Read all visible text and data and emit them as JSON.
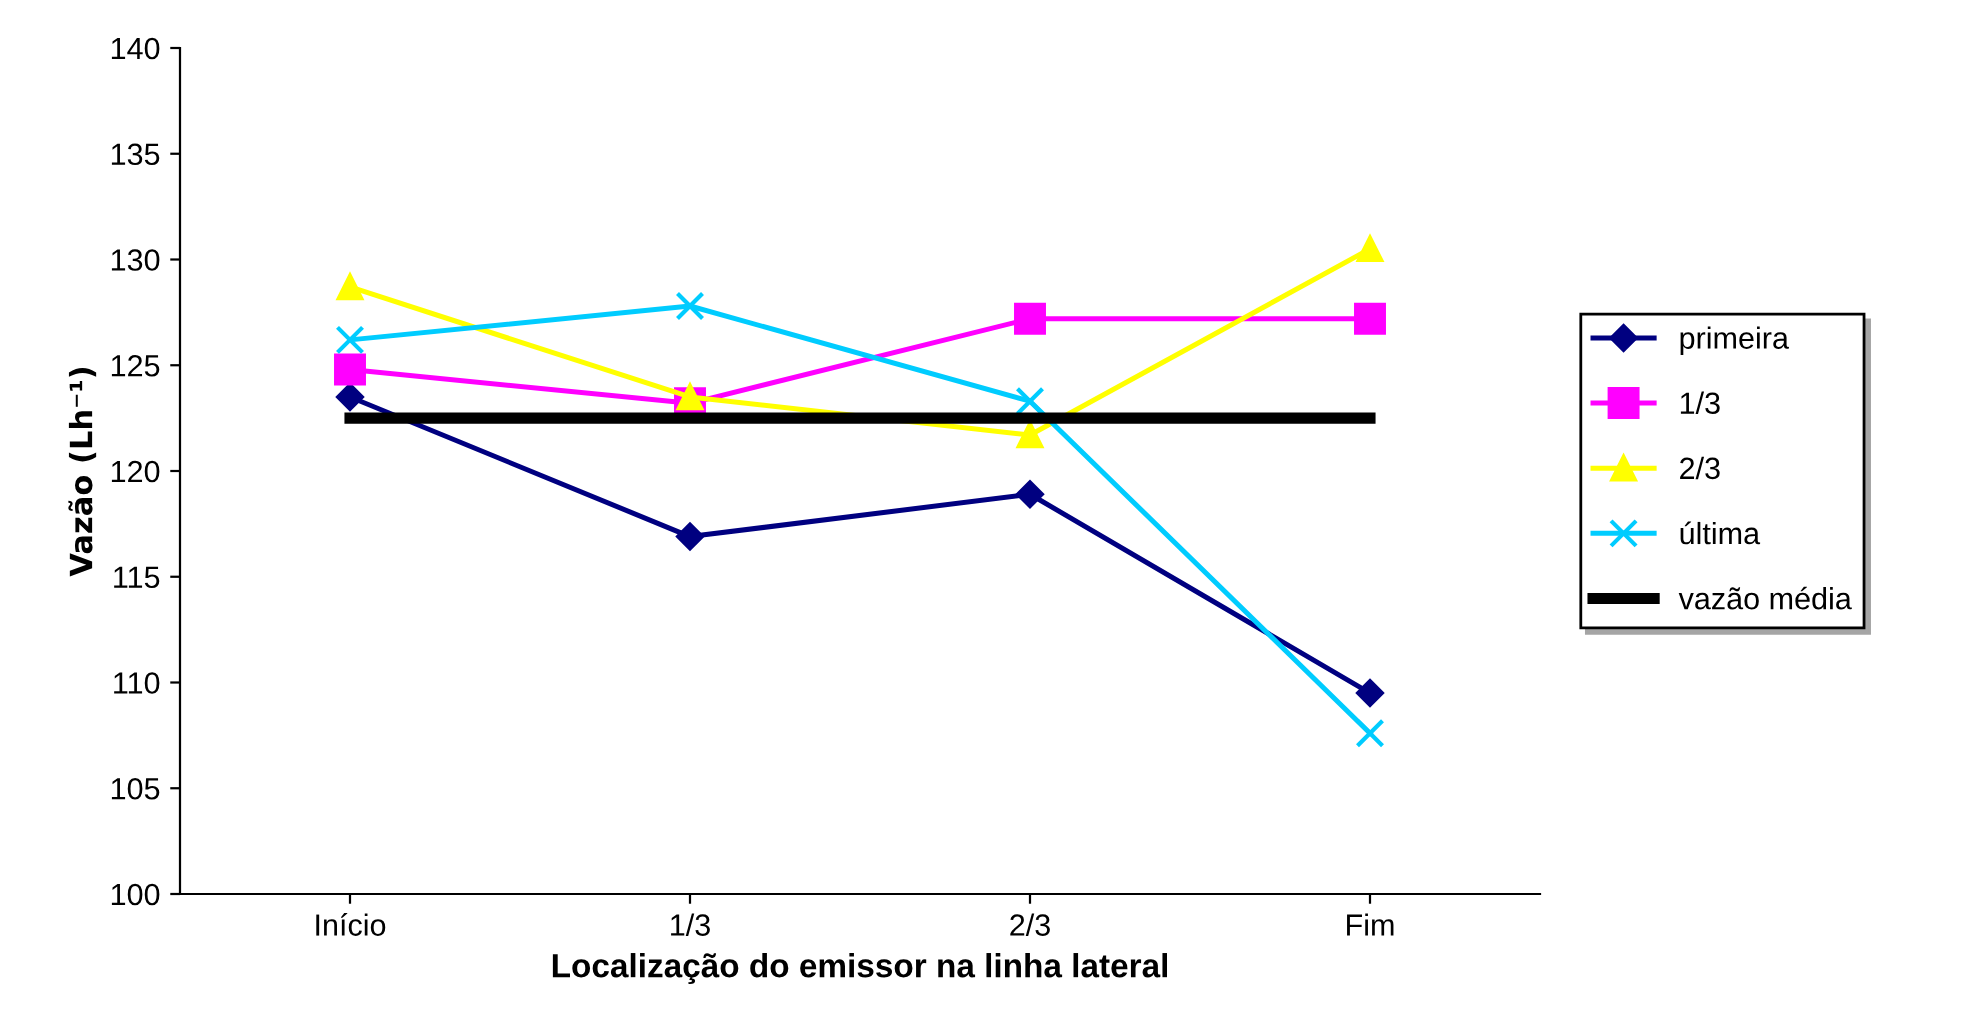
{
  "chart_data": {
    "type": "line",
    "xlabel": "Localização do emissor na linha lateral",
    "ylabel": "Vazão (Lh⁻¹)",
    "categories": [
      "Início",
      "1/3",
      "2/3",
      "Fim"
    ],
    "series": [
      {
        "name": "primeira",
        "color": "#000080",
        "marker": "diamond",
        "values": [
          123.5,
          116.9,
          118.9,
          109.5
        ]
      },
      {
        "name": "1/3",
        "color": "#ff00ff",
        "marker": "square",
        "values": [
          124.8,
          123.2,
          127.2,
          127.2
        ]
      },
      {
        "name": "2/3",
        "color": "#ffff00",
        "marker": "triangle",
        "values": [
          128.7,
          123.5,
          121.7,
          130.5
        ]
      },
      {
        "name": "última",
        "color": "#00ccff",
        "marker": "cross",
        "values": [
          126.2,
          127.8,
          123.3,
          107.6
        ]
      },
      {
        "name": "vazão média",
        "color": "#000000",
        "marker": "none",
        "values": [
          122.5,
          122.5,
          122.5,
          122.5
        ]
      }
    ],
    "ylim": [
      100,
      140
    ],
    "yticks": [
      100,
      105,
      110,
      115,
      120,
      125,
      130,
      135,
      140
    ],
    "grid": false,
    "legend": "right"
  }
}
